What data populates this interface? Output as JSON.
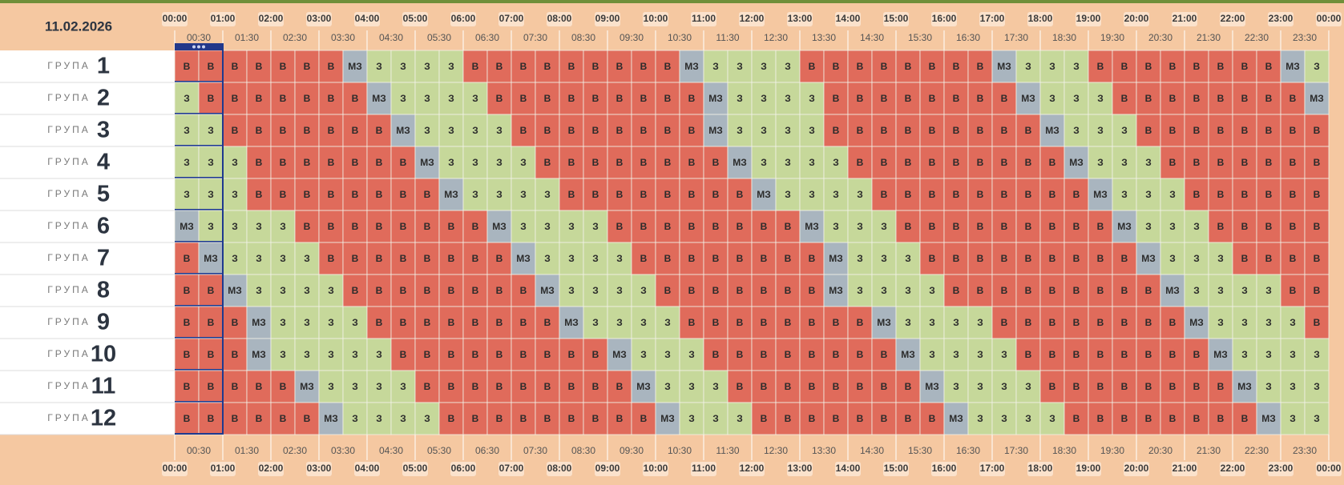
{
  "header": {
    "date": "11.02.2026"
  },
  "hour_labels": [
    "00:00",
    "01:00",
    "02:00",
    "03:00",
    "04:00",
    "05:00",
    "06:00",
    "07:00",
    "08:00",
    "09:00",
    "10:00",
    "11:00",
    "12:00",
    "13:00",
    "14:00",
    "15:00",
    "16:00",
    "17:00",
    "18:00",
    "19:00",
    "20:00",
    "21:00",
    "22:00",
    "23:00",
    "00:00"
  ],
  "half_labels": [
    "00:30",
    "01:30",
    "02:30",
    "03:30",
    "04:30",
    "05:30",
    "06:30",
    "07:30",
    "08:30",
    "09:30",
    "10:30",
    "11:30",
    "12:30",
    "13:30",
    "14:30",
    "15:30",
    "16:30",
    "17:30",
    "18:30",
    "19:30",
    "20:30",
    "21:30",
    "22:30",
    "23:30"
  ],
  "state_colors": {
    "В": "#e06b5b",
    "З": "#c6d89a",
    "МЗ": "#a9b5bf"
  },
  "groups": [
    {
      "label": "ГРУПА",
      "number": 1,
      "cells": [
        "В",
        "В",
        "В",
        "В",
        "В",
        "В",
        "В",
        "МЗ",
        "З",
        "З",
        "З",
        "З",
        "В",
        "В",
        "В",
        "В",
        "В",
        "В",
        "В",
        "В",
        "В",
        "МЗ",
        "З",
        "З",
        "З",
        "З",
        "В",
        "В",
        "В",
        "В",
        "В",
        "В",
        "В",
        "В",
        "МЗ",
        "З",
        "З",
        "З",
        "В",
        "В",
        "В",
        "В",
        "В",
        "В",
        "В",
        "В",
        "МЗ",
        "З"
      ]
    },
    {
      "label": "ГРУПА",
      "number": 2,
      "cells": [
        "З",
        "В",
        "В",
        "В",
        "В",
        "В",
        "В",
        "В",
        "МЗ",
        "З",
        "З",
        "З",
        "З",
        "В",
        "В",
        "В",
        "В",
        "В",
        "В",
        "В",
        "В",
        "В",
        "МЗ",
        "З",
        "З",
        "З",
        "З",
        "В",
        "В",
        "В",
        "В",
        "В",
        "В",
        "В",
        "В",
        "МЗ",
        "З",
        "З",
        "З",
        "В",
        "В",
        "В",
        "В",
        "В",
        "В",
        "В",
        "В",
        "МЗ"
      ]
    },
    {
      "label": "ГРУПА",
      "number": 3,
      "cells": [
        "З",
        "З",
        "В",
        "В",
        "В",
        "В",
        "В",
        "В",
        "В",
        "МЗ",
        "З",
        "З",
        "З",
        "З",
        "В",
        "В",
        "В",
        "В",
        "В",
        "В",
        "В",
        "В",
        "МЗ",
        "З",
        "З",
        "З",
        "З",
        "В",
        "В",
        "В",
        "В",
        "В",
        "В",
        "В",
        "В",
        "В",
        "МЗ",
        "З",
        "З",
        "З",
        "В",
        "В",
        "В",
        "В",
        "В",
        "В",
        "В",
        "В"
      ]
    },
    {
      "label": "ГРУПА",
      "number": 4,
      "cells": [
        "З",
        "З",
        "З",
        "В",
        "В",
        "В",
        "В",
        "В",
        "В",
        "В",
        "МЗ",
        "З",
        "З",
        "З",
        "З",
        "В",
        "В",
        "В",
        "В",
        "В",
        "В",
        "В",
        "В",
        "МЗ",
        "З",
        "З",
        "З",
        "З",
        "В",
        "В",
        "В",
        "В",
        "В",
        "В",
        "В",
        "В",
        "В",
        "МЗ",
        "З",
        "З",
        "З",
        "В",
        "В",
        "В",
        "В",
        "В",
        "В",
        "В"
      ]
    },
    {
      "label": "ГРУПА",
      "number": 5,
      "cells": [
        "З",
        "З",
        "З",
        "В",
        "В",
        "В",
        "В",
        "В",
        "В",
        "В",
        "В",
        "МЗ",
        "З",
        "З",
        "З",
        "З",
        "В",
        "В",
        "В",
        "В",
        "В",
        "В",
        "В",
        "В",
        "МЗ",
        "З",
        "З",
        "З",
        "З",
        "В",
        "В",
        "В",
        "В",
        "В",
        "В",
        "В",
        "В",
        "В",
        "МЗ",
        "З",
        "З",
        "З",
        "В",
        "В",
        "В",
        "В",
        "В",
        "В"
      ]
    },
    {
      "label": "ГРУПА",
      "number": 6,
      "cells": [
        "МЗ",
        "З",
        "З",
        "З",
        "З",
        "В",
        "В",
        "В",
        "В",
        "В",
        "В",
        "В",
        "В",
        "МЗ",
        "З",
        "З",
        "З",
        "З",
        "В",
        "В",
        "В",
        "В",
        "В",
        "В",
        "В",
        "В",
        "МЗ",
        "З",
        "З",
        "З",
        "В",
        "В",
        "В",
        "В",
        "В",
        "В",
        "В",
        "В",
        "В",
        "МЗ",
        "З",
        "З",
        "З",
        "В",
        "В",
        "В",
        "В",
        "В"
      ]
    },
    {
      "label": "ГРУПА",
      "number": 7,
      "cells": [
        "В",
        "МЗ",
        "З",
        "З",
        "З",
        "З",
        "В",
        "В",
        "В",
        "В",
        "В",
        "В",
        "В",
        "В",
        "МЗ",
        "З",
        "З",
        "З",
        "З",
        "В",
        "В",
        "В",
        "В",
        "В",
        "В",
        "В",
        "В",
        "МЗ",
        "З",
        "З",
        "З",
        "В",
        "В",
        "В",
        "В",
        "В",
        "В",
        "В",
        "В",
        "В",
        "МЗ",
        "З",
        "З",
        "З",
        "В",
        "В",
        "В",
        "В"
      ]
    },
    {
      "label": "ГРУПА",
      "number": 8,
      "cells": [
        "В",
        "В",
        "МЗ",
        "З",
        "З",
        "З",
        "З",
        "В",
        "В",
        "В",
        "В",
        "В",
        "В",
        "В",
        "В",
        "МЗ",
        "З",
        "З",
        "З",
        "З",
        "В",
        "В",
        "В",
        "В",
        "В",
        "В",
        "В",
        "МЗ",
        "З",
        "З",
        "З",
        "З",
        "В",
        "В",
        "В",
        "В",
        "В",
        "В",
        "В",
        "В",
        "В",
        "МЗ",
        "З",
        "З",
        "З",
        "З",
        "В",
        "В"
      ]
    },
    {
      "label": "ГРУПА",
      "number": 9,
      "cells": [
        "В",
        "В",
        "В",
        "МЗ",
        "З",
        "З",
        "З",
        "З",
        "В",
        "В",
        "В",
        "В",
        "В",
        "В",
        "В",
        "В",
        "МЗ",
        "З",
        "З",
        "З",
        "З",
        "В",
        "В",
        "В",
        "В",
        "В",
        "В",
        "В",
        "В",
        "МЗ",
        "З",
        "З",
        "З",
        "З",
        "В",
        "В",
        "В",
        "В",
        "В",
        "В",
        "В",
        "В",
        "МЗ",
        "З",
        "З",
        "З",
        "З",
        "В"
      ]
    },
    {
      "label": "ГРУПА",
      "number": 10,
      "cells": [
        "В",
        "В",
        "В",
        "МЗ",
        "З",
        "З",
        "З",
        "З",
        "З",
        "В",
        "В",
        "В",
        "В",
        "В",
        "В",
        "В",
        "В",
        "В",
        "МЗ",
        "З",
        "З",
        "З",
        "В",
        "В",
        "В",
        "В",
        "В",
        "В",
        "В",
        "В",
        "МЗ",
        "З",
        "З",
        "З",
        "З",
        "В",
        "В",
        "В",
        "В",
        "В",
        "В",
        "В",
        "В",
        "МЗ",
        "З",
        "З",
        "З",
        "З"
      ]
    },
    {
      "label": "ГРУПА",
      "number": 11,
      "cells": [
        "В",
        "В",
        "В",
        "В",
        "В",
        "МЗ",
        "З",
        "З",
        "З",
        "З",
        "В",
        "В",
        "В",
        "В",
        "В",
        "В",
        "В",
        "В",
        "В",
        "МЗ",
        "З",
        "З",
        "З",
        "В",
        "В",
        "В",
        "В",
        "В",
        "В",
        "В",
        "В",
        "МЗ",
        "З",
        "З",
        "З",
        "З",
        "В",
        "В",
        "В",
        "В",
        "В",
        "В",
        "В",
        "В",
        "МЗ",
        "З",
        "З",
        "З"
      ]
    },
    {
      "label": "ГРУПА",
      "number": 12,
      "cells": [
        "В",
        "В",
        "В",
        "В",
        "В",
        "В",
        "МЗ",
        "З",
        "З",
        "З",
        "З",
        "В",
        "В",
        "В",
        "В",
        "В",
        "В",
        "В",
        "В",
        "В",
        "МЗ",
        "З",
        "З",
        "З",
        "В",
        "В",
        "В",
        "В",
        "В",
        "В",
        "В",
        "В",
        "МЗ",
        "З",
        "З",
        "З",
        "З",
        "В",
        "В",
        "В",
        "В",
        "В",
        "В",
        "В",
        "В",
        "МЗ",
        "З",
        "З"
      ]
    }
  ]
}
